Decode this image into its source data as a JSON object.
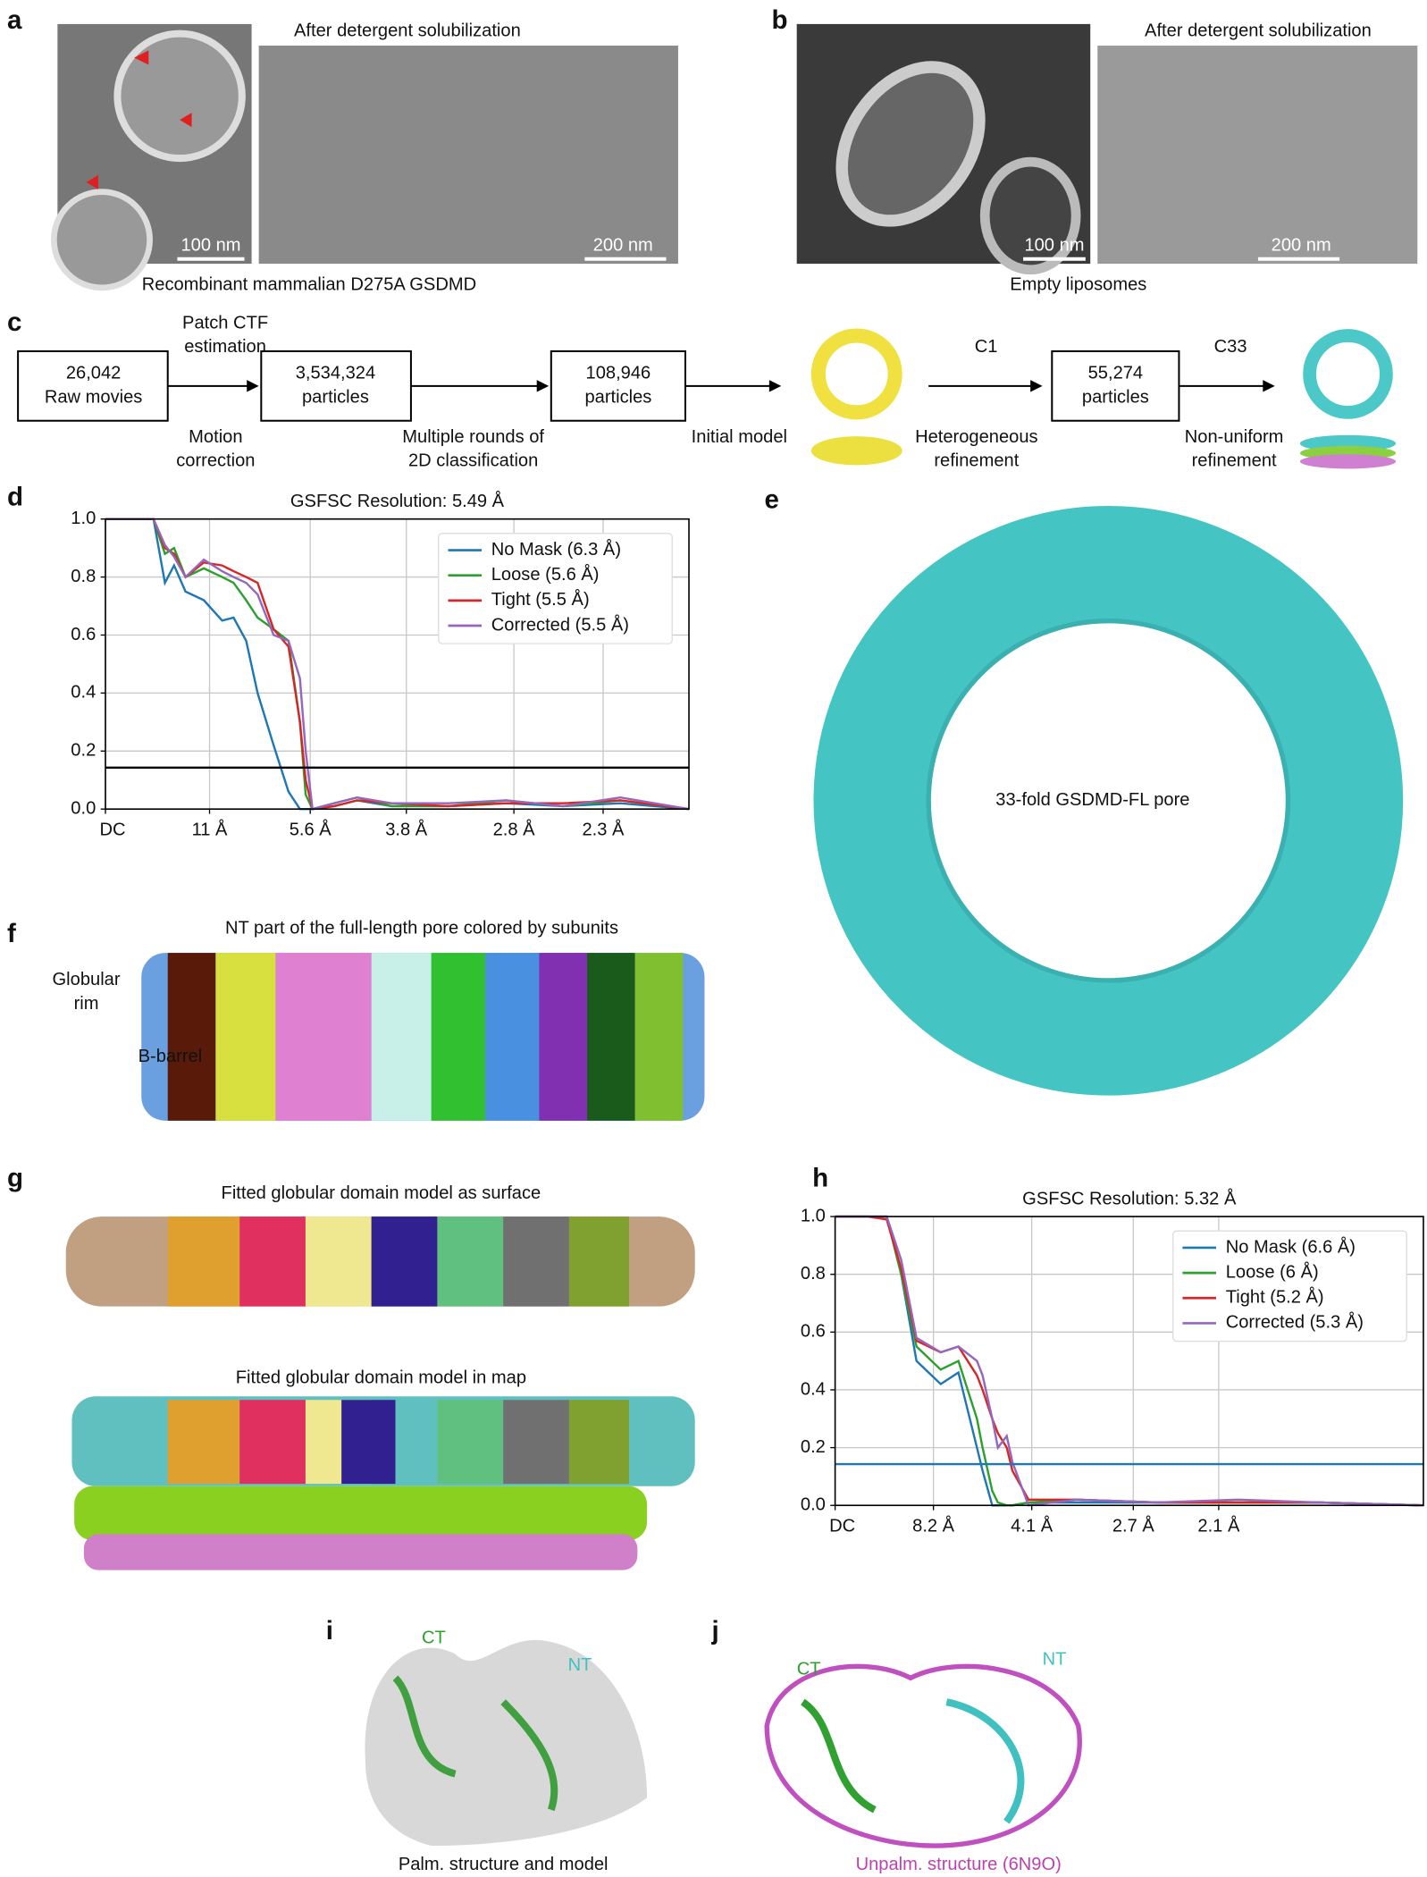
{
  "panels": {
    "a": {
      "label": "a",
      "title": "After detergent solubilization",
      "scale_left": "100 nm",
      "scale_right": "200 nm",
      "caption": "Recombinant mammalian D275A GSDMD"
    },
    "b": {
      "label": "b",
      "title": "After detergent solubilization",
      "scale_left": "100 nm",
      "scale_right": "200 nm",
      "caption": "Empty liposomes"
    },
    "c": {
      "label": "c",
      "boxes": [
        [
          "26,042",
          "Raw movies"
        ],
        [
          "3,534,324",
          "particles"
        ],
        [
          "108,946",
          "particles"
        ],
        [
          "55,274",
          "particles"
        ]
      ],
      "patch": [
        "Patch CTF",
        "estimation"
      ],
      "motion": [
        "Motion",
        "correction"
      ],
      "classification": [
        "Multiple rounds of",
        "2D classification"
      ],
      "initial": "Initial model",
      "c1": "C1",
      "hetero": [
        "Heterogeneous",
        "refinement"
      ],
      "c33": "C33",
      "nonuniform": [
        "Non-uniform",
        "refinement"
      ]
    },
    "d": {
      "label": "d"
    },
    "e": {
      "label": "e",
      "text": "33-fold GSDMD-FL pore"
    },
    "f": {
      "label": "f",
      "title": "NT part of the full-length pore colored by subunits",
      "rim": [
        "Globular",
        "rim"
      ],
      "barrel": "B-barrel"
    },
    "g": {
      "label": "g",
      "top_title": "Fitted globular domain model as surface",
      "bottom_title": "Fitted globular domain model in map"
    },
    "h": {
      "label": "h"
    },
    "i": {
      "label": "i",
      "ct": "CT",
      "nt": "NT",
      "caption": "Palm. structure and model"
    },
    "j": {
      "label": "j",
      "ct": "CT",
      "nt": "NT",
      "caption": "Unpalm. structure (6N9O)"
    }
  },
  "chart_data": [
    {
      "type": "line",
      "title": "GSFSC Resolution: 5.49 Å",
      "legend": "upper right",
      "grid": true,
      "threshold": 0.143,
      "threshold_color": "#000000",
      "xlim": [
        0,
        0.51
      ],
      "ylim": [
        0,
        1
      ],
      "xticks": [
        {
          "value": 0,
          "label": "DC"
        },
        {
          "value": 0.091,
          "label": "11 Å"
        },
        {
          "value": 0.179,
          "label": "5.6 Å"
        },
        {
          "value": 0.263,
          "label": "3.8 Å"
        },
        {
          "value": 0.357,
          "label": "2.8 Å"
        },
        {
          "value": 0.435,
          "label": "2.3 Å"
        }
      ],
      "yticks": [
        {
          "value": 0,
          "label": "0.0"
        },
        0.2,
        0.4,
        0.6,
        0.8,
        {
          "value": 1,
          "label": "1.0"
        }
      ],
      "x": [
        0,
        0.03,
        0.042,
        0.052,
        0.06,
        0.07,
        0.086,
        0.102,
        0.112,
        0.123,
        0.133,
        0.147,
        0.16,
        0.17,
        0.175,
        0.181,
        0.2,
        0.22,
        0.25,
        0.3,
        0.35,
        0.4,
        0.45,
        0.51
      ],
      "series": [
        {
          "name": "No Mask (6.3 Å)",
          "color": "#1f77b4",
          "values": [
            1,
            1,
            1,
            0.78,
            0.84,
            0.75,
            0.72,
            0.65,
            0.66,
            0.58,
            0.4,
            0.22,
            0.06,
            0,
            0,
            0,
            0.01,
            0.03,
            0.01,
            0.01,
            0.02,
            0.01,
            0.02,
            0
          ]
        },
        {
          "name": "Loose (5.6 Å)",
          "color": "#2ca02c",
          "values": [
            1,
            1,
            1,
            0.88,
            0.9,
            0.8,
            0.83,
            0.8,
            0.78,
            0.72,
            0.66,
            0.62,
            0.58,
            0.3,
            0.05,
            0,
            0.02,
            0.04,
            0.01,
            0.01,
            0.03,
            0.01,
            0.03,
            0
          ]
        },
        {
          "name": "Tight (5.5 Å)",
          "color": "#d62728",
          "values": [
            1,
            1,
            1,
            0.9,
            0.88,
            0.8,
            0.85,
            0.84,
            0.82,
            0.8,
            0.78,
            0.62,
            0.56,
            0.3,
            0.1,
            0,
            0.01,
            0.03,
            0.02,
            0.01,
            0.02,
            0.02,
            0.03,
            0
          ]
        },
        {
          "name": "Corrected (5.5 Å)",
          "color": "#9467bd",
          "values": [
            1,
            1,
            1,
            0.91,
            0.87,
            0.8,
            0.86,
            0.82,
            0.8,
            0.78,
            0.74,
            0.6,
            0.58,
            0.45,
            0.2,
            0,
            0.02,
            0.04,
            0.02,
            0.02,
            0.03,
            0.01,
            0.04,
            0
          ]
        }
      ]
    },
    {
      "type": "line",
      "title": "GSFSC Resolution: 5.32 Å",
      "legend": "upper right",
      "grid": true,
      "threshold": 0.143,
      "threshold_color": "#1f77b4",
      "xlim": [
        0,
        0.73
      ],
      "ylim": [
        0,
        1
      ],
      "xticks": [
        {
          "value": 0,
          "label": "DC"
        },
        {
          "value": 0.122,
          "label": "8.2 Å"
        },
        {
          "value": 0.244,
          "label": "4.1 Å"
        },
        {
          "value": 0.37,
          "label": "2.7 Å"
        },
        {
          "value": 0.476,
          "label": "2.1 Å"
        }
      ],
      "yticks": [
        {
          "value": 0,
          "label": "0.0"
        },
        0.2,
        0.4,
        0.6,
        0.8,
        {
          "value": 1,
          "label": "1.0"
        }
      ],
      "x": [
        0,
        0.04,
        0.064,
        0.082,
        0.101,
        0.131,
        0.153,
        0.176,
        0.183,
        0.195,
        0.202,
        0.213,
        0.22,
        0.24,
        0.3,
        0.4,
        0.5,
        0.6,
        0.73
      ],
      "series": [
        {
          "name": "No Mask (6.6 Å)",
          "color": "#1f77b4",
          "values": [
            1,
            1,
            1,
            0.8,
            0.5,
            0.42,
            0.46,
            0.2,
            0.12,
            0,
            0,
            0,
            0,
            0.01,
            0.01,
            0.01,
            0.01,
            0.01,
            0
          ]
        },
        {
          "name": "Loose (6 Å)",
          "color": "#2ca02c",
          "values": [
            1,
            1,
            1,
            0.8,
            0.55,
            0.47,
            0.5,
            0.3,
            0.2,
            0.05,
            0.01,
            0,
            0,
            0.01,
            0.02,
            0.01,
            0.01,
            0.01,
            0
          ]
        },
        {
          "name": "Tight (5.2 Å)",
          "color": "#d62728",
          "values": [
            1,
            1,
            0.99,
            0.82,
            0.57,
            0.53,
            0.55,
            0.45,
            0.4,
            0.3,
            0.25,
            0.2,
            0.12,
            0.02,
            0.02,
            0.01,
            0.01,
            0.01,
            0
          ]
        },
        {
          "name": "Corrected (5.3 Å)",
          "color": "#9467bd",
          "values": [
            1,
            1,
            1,
            0.85,
            0.58,
            0.53,
            0.55,
            0.5,
            0.45,
            0.3,
            0.2,
            0.24,
            0.15,
            0,
            0.02,
            0.01,
            0.02,
            0.01,
            0
          ]
        }
      ]
    }
  ]
}
